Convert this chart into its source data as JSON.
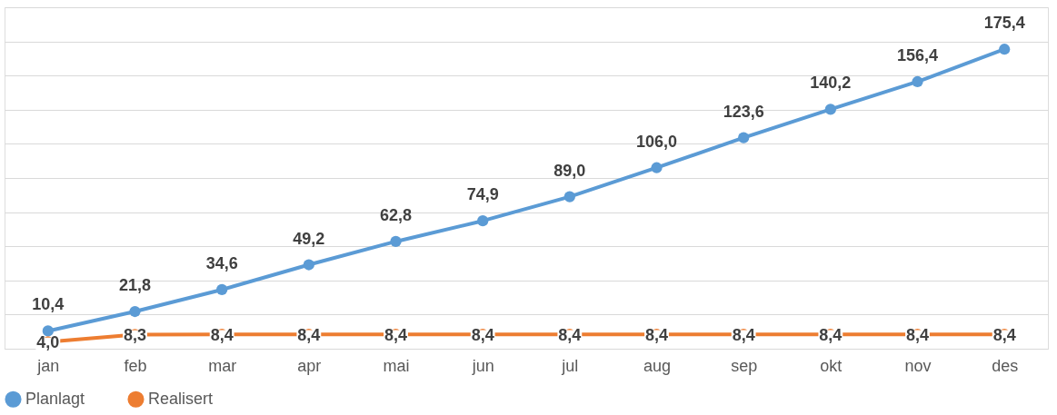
{
  "chart_data": {
    "type": "line",
    "categories": [
      "jan",
      "feb",
      "mar",
      "apr",
      "mai",
      "jun",
      "jul",
      "aug",
      "sep",
      "okt",
      "nov",
      "des"
    ],
    "series": [
      {
        "name": "Planlagt",
        "color": "#5b9bd5",
        "values": [
          10.4,
          21.8,
          34.6,
          49.2,
          62.8,
          74.9,
          89.0,
          106.0,
          123.6,
          140.2,
          156.4,
          175.4
        ],
        "value_labels": [
          "10,4",
          "21,8",
          "34,6",
          "49,2",
          "62,8",
          "74,9",
          "89,0",
          "106,0",
          "123,6",
          "140,2",
          "156,4",
          "175,4"
        ]
      },
      {
        "name": "Realisert",
        "color": "#ed7d31",
        "values": [
          4.0,
          8.3,
          8.4,
          8.4,
          8.4,
          8.4,
          8.4,
          8.4,
          8.4,
          8.4,
          8.4,
          8.4
        ],
        "value_labels": [
          "4,0",
          "8,3",
          "8,4",
          "8,4",
          "8,4",
          "8,4",
          "8,4",
          "8,4",
          "8,4",
          "8,4",
          "8,4",
          "8,4"
        ]
      }
    ],
    "ylim": [
      0,
      200
    ],
    "tick_labels": "x",
    "grid": "y",
    "legend": "bottom",
    "marker": "circle",
    "line_style": "solid"
  }
}
